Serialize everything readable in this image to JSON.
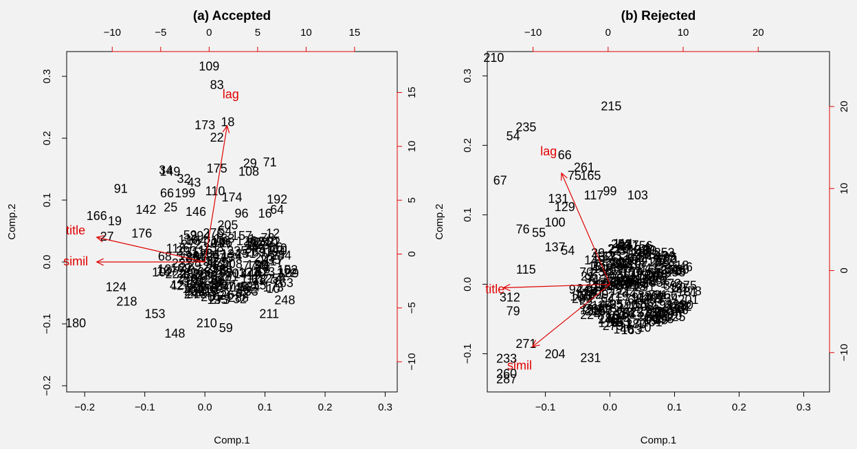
{
  "chart_data": [
    {
      "type": "scatter",
      "title": "(a) Accepted",
      "xlabel": "Comp.1",
      "ylabel": "Comp.2",
      "xlim": [
        -0.23,
        0.32
      ],
      "ylim": [
        -0.21,
        0.34
      ],
      "x_ticks": [
        "-0.2",
        "-0.1",
        "0.0",
        "0.1",
        "0.2",
        "0.3"
      ],
      "y_ticks": [
        "-0.2",
        "-0.1",
        "0.0",
        "0.1",
        "0.2",
        "0.3"
      ],
      "top_ticks": [
        "-10",
        "-5",
        "0",
        "5",
        "10",
        "15"
      ],
      "right_ticks": [
        "-10",
        "-5",
        "0",
        "5",
        "10",
        "15"
      ],
      "right_label": "Comp.2",
      "top_scale": [
        -14.7,
        19.4
      ],
      "right_scale": [
        -12.8,
        18.8
      ],
      "arrow_color": "#e00000",
      "points": [
        {
          "label": "109",
          "x": 0.007,
          "y": 0.315
        },
        {
          "label": "83",
          "x": 0.02,
          "y": 0.285
        },
        {
          "label": "173",
          "x": -0.0,
          "y": 0.22
        },
        {
          "label": "18",
          "x": 0.038,
          "y": 0.225
        },
        {
          "label": "22",
          "x": 0.02,
          "y": 0.2
        },
        {
          "label": "175",
          "x": 0.02,
          "y": 0.15
        },
        {
          "label": "29",
          "x": 0.075,
          "y": 0.158
        },
        {
          "label": "71",
          "x": 0.108,
          "y": 0.16
        },
        {
          "label": "108",
          "x": 0.073,
          "y": 0.145
        },
        {
          "label": "34",
          "x": -0.065,
          "y": 0.147
        },
        {
          "label": "149",
          "x": -0.058,
          "y": 0.145
        },
        {
          "label": "32",
          "x": -0.035,
          "y": 0.133
        },
        {
          "label": "43",
          "x": -0.018,
          "y": 0.127
        },
        {
          "label": "91",
          "x": -0.14,
          "y": 0.117
        },
        {
          "label": "66",
          "x": -0.063,
          "y": 0.11
        },
        {
          "label": "199",
          "x": -0.033,
          "y": 0.11
        },
        {
          "label": "110",
          "x": 0.017,
          "y": 0.113
        },
        {
          "label": "174",
          "x": 0.045,
          "y": 0.103
        },
        {
          "label": "192",
          "x": 0.12,
          "y": 0.1
        },
        {
          "label": "64",
          "x": 0.12,
          "y": 0.083
        },
        {
          "label": "16",
          "x": 0.1,
          "y": 0.077
        },
        {
          "label": "96",
          "x": 0.061,
          "y": 0.077
        },
        {
          "label": "142",
          "x": -0.098,
          "y": 0.083
        },
        {
          "label": "25",
          "x": -0.057,
          "y": 0.087
        },
        {
          "label": "146",
          "x": -0.015,
          "y": 0.08
        },
        {
          "label": "166",
          "x": -0.18,
          "y": 0.073
        },
        {
          "label": "19",
          "x": -0.15,
          "y": 0.065
        },
        {
          "label": "27",
          "x": -0.163,
          "y": 0.04
        },
        {
          "label": "176",
          "x": -0.105,
          "y": 0.045
        },
        {
          "label": "205",
          "x": 0.038,
          "y": 0.058
        },
        {
          "label": "12",
          "x": 0.113,
          "y": 0.045
        },
        {
          "label": "194",
          "x": 0.117,
          "y": 0.015
        },
        {
          "label": "180",
          "x": -0.215,
          "y": -0.1
        },
        {
          "label": "153",
          "x": -0.083,
          "y": -0.085
        },
        {
          "label": "148",
          "x": -0.05,
          "y": -0.117
        },
        {
          "label": "210",
          "x": 0.003,
          "y": -0.1
        },
        {
          "label": "59",
          "x": 0.035,
          "y": -0.108
        },
        {
          "label": "211",
          "x": 0.107,
          "y": -0.085
        },
        {
          "label": "248",
          "x": 0.133,
          "y": -0.063
        },
        {
          "label": "163",
          "x": 0.13,
          "y": -0.035
        },
        {
          "label": "218",
          "x": -0.13,
          "y": -0.065
        },
        {
          "label": "124",
          "x": -0.148,
          "y": -0.042
        }
      ],
      "arrows": [
        {
          "label": "lag",
          "x": 0.037,
          "y": 0.22,
          "lx": 0.043,
          "ly": 0.27
        },
        {
          "label": "title",
          "x": -0.18,
          "y": 0.04,
          "lx": -0.215,
          "ly": 0.05
        },
        {
          "label": "simil",
          "x": -0.18,
          "y": 0.0,
          "lx": -0.215,
          "ly": 0.0
        }
      ]
    },
    {
      "type": "scatter",
      "title": "(b) Rejected",
      "xlabel": "Comp.1",
      "ylabel": "",
      "xlim": [
        -0.19,
        0.34
      ],
      "ylim": [
        -0.155,
        0.335
      ],
      "x_ticks": [
        "-0.1",
        "0.0",
        "0.1",
        "0.2",
        "0.3"
      ],
      "y_ticks": [
        "-0.1",
        "0.0",
        "0.1",
        "0.2",
        "0.3"
      ],
      "top_ticks": [
        "-10",
        "0",
        "10",
        "20"
      ],
      "right_ticks": [
        "-10",
        "0",
        "10",
        "20"
      ],
      "right_label": "",
      "top_scale": [
        -16.1,
        29.5
      ],
      "right_scale": [
        -14.8,
        26.7
      ],
      "arrow_color": "#e00000",
      "points": [
        {
          "label": "210",
          "x": -0.18,
          "y": 0.325
        },
        {
          "label": "215",
          "x": 0.002,
          "y": 0.255
        },
        {
          "label": "235",
          "x": -0.13,
          "y": 0.225
        },
        {
          "label": "54",
          "x": -0.15,
          "y": 0.212
        },
        {
          "label": "66",
          "x": -0.07,
          "y": 0.185
        },
        {
          "label": "261",
          "x": -0.04,
          "y": 0.167
        },
        {
          "label": "75",
          "x": -0.055,
          "y": 0.155
        },
        {
          "label": "165",
          "x": -0.03,
          "y": 0.155
        },
        {
          "label": "67",
          "x": -0.17,
          "y": 0.148
        },
        {
          "label": "99",
          "x": 0.0,
          "y": 0.133
        },
        {
          "label": "117",
          "x": -0.025,
          "y": 0.127
        },
        {
          "label": "103",
          "x": 0.043,
          "y": 0.127
        },
        {
          "label": "131",
          "x": -0.08,
          "y": 0.122
        },
        {
          "label": "129",
          "x": -0.07,
          "y": 0.11
        },
        {
          "label": "100",
          "x": -0.085,
          "y": 0.088
        },
        {
          "label": "76",
          "x": -0.135,
          "y": 0.078
        },
        {
          "label": "55",
          "x": -0.11,
          "y": 0.073
        },
        {
          "label": "137",
          "x": -0.085,
          "y": 0.052
        },
        {
          "label": "54",
          "x": -0.065,
          "y": 0.047
        },
        {
          "label": "115",
          "x": -0.13,
          "y": 0.02
        },
        {
          "label": "312",
          "x": -0.155,
          "y": -0.02
        },
        {
          "label": "79",
          "x": -0.15,
          "y": -0.04
        },
        {
          "label": "271",
          "x": -0.13,
          "y": -0.087
        },
        {
          "label": "204",
          "x": -0.085,
          "y": -0.102
        },
        {
          "label": "231",
          "x": -0.03,
          "y": -0.107
        },
        {
          "label": "233",
          "x": -0.16,
          "y": -0.108
        },
        {
          "label": "260",
          "x": -0.16,
          "y": -0.13
        },
        {
          "label": "287",
          "x": -0.16,
          "y": -0.138
        }
      ],
      "arrows": [
        {
          "label": "lag",
          "x": -0.075,
          "y": 0.16,
          "lx": -0.095,
          "ly": 0.19
        },
        {
          "label": "title",
          "x": -0.165,
          "y": -0.005,
          "lx": -0.178,
          "ly": -0.008
        },
        {
          "label": "simil",
          "x": -0.12,
          "y": -0.09,
          "lx": -0.14,
          "ly": -0.118
        }
      ]
    }
  ]
}
